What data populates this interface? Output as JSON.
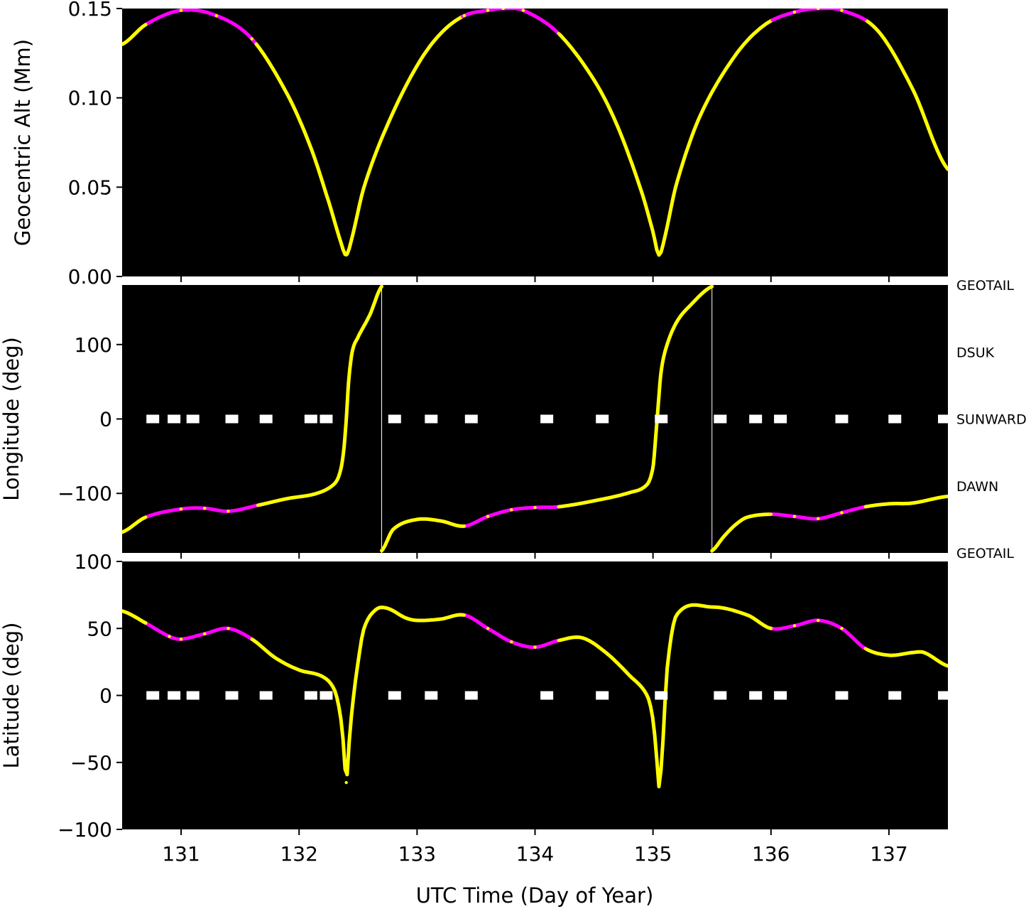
{
  "colors": {
    "background": "#000000",
    "track": "#ffff00",
    "highlight": "#ff00ff",
    "marker": "#ffffff",
    "wrap_line": "#ffffff"
  },
  "chart_data": [
    {
      "type": "line",
      "panel": "altitude",
      "xlabel": "",
      "ylabel": "Geocentric Alt (Mm)",
      "xlim": [
        130.5,
        137.5
      ],
      "ylim": [
        0.0,
        0.15
      ],
      "yticks": [
        0.0,
        0.05,
        0.1,
        0.15
      ],
      "ytick_labels": [
        "0.00",
        "0.05",
        "0.10",
        "0.15"
      ],
      "series": [
        {
          "color": "#ffff00",
          "x": [
            130.5,
            130.7,
            131.0,
            131.3,
            131.6,
            131.9,
            132.1,
            132.25,
            132.35,
            132.4,
            132.45,
            132.55,
            132.75,
            133.0,
            133.2,
            133.4,
            133.6,
            133.73,
            133.9,
            134.2,
            134.5,
            134.7,
            134.9,
            135.0,
            135.05,
            135.1,
            135.2,
            135.4,
            135.7,
            135.95,
            136.2,
            136.4,
            136.6,
            136.9,
            137.2,
            137.5
          ],
          "values": [
            0.13,
            0.141,
            0.149,
            0.146,
            0.133,
            0.102,
            0.072,
            0.042,
            0.02,
            0.012,
            0.022,
            0.05,
            0.085,
            0.118,
            0.136,
            0.146,
            0.149,
            0.15,
            0.149,
            0.136,
            0.11,
            0.084,
            0.048,
            0.025,
            0.012,
            0.022,
            0.052,
            0.09,
            0.124,
            0.141,
            0.148,
            0.15,
            0.149,
            0.138,
            0.105,
            0.06
          ]
        }
      ],
      "highlight_ranges": [
        [
          130.7,
          131.63
        ],
        [
          133.38,
          134.2
        ],
        [
          136.0,
          136.8
        ]
      ]
    },
    {
      "type": "line",
      "panel": "longitude",
      "xlabel": "",
      "ylabel": "Longitude (deg)",
      "xlim": [
        130.5,
        137.5
      ],
      "ylim": [
        -180,
        180
      ],
      "yticks": [
        -100,
        0,
        100
      ],
      "ytick_labels": [
        "−100",
        "0",
        "100"
      ],
      "right_labels": [
        {
          "value": 180,
          "text": "GEOTAIL"
        },
        {
          "value": 90,
          "text": "DSUK"
        },
        {
          "value": 0,
          "text": "SUNWARD"
        },
        {
          "value": -90,
          "text": "DAWN"
        },
        {
          "value": -180,
          "text": "GEOTAIL"
        }
      ],
      "series": [
        {
          "color": "#ffff00",
          "x": [
            130.5,
            130.7,
            131.0,
            131.2,
            131.4,
            131.65,
            131.9,
            132.15,
            132.3,
            132.35,
            132.38,
            132.4,
            132.42,
            132.45,
            132.5,
            132.6,
            132.7
          ],
          "values": [
            -152,
            -132,
            -121,
            -120,
            -124,
            -116,
            -107,
            -100,
            -87,
            -70,
            -40,
            0,
            50,
            90,
            110,
            140,
            178
          ]
        },
        {
          "color": "#ffff00",
          "x": [
            132.7,
            132.8,
            133.0,
            133.2,
            133.4,
            133.6,
            133.8,
            134.0,
            134.2,
            134.5,
            134.8,
            134.95,
            135.0,
            135.02,
            135.04,
            135.07,
            135.12,
            135.2,
            135.3,
            135.5
          ],
          "values": [
            -177,
            -148,
            -135,
            -137,
            -144,
            -131,
            -122,
            -119,
            -118,
            -110,
            -99,
            -88,
            -65,
            -30,
            10,
            65,
            100,
            130,
            150,
            178
          ]
        },
        {
          "color": "#ffff00",
          "x": [
            135.5,
            135.6,
            135.7,
            135.8,
            136.0,
            136.2,
            136.4,
            136.6,
            136.8,
            137.0,
            137.2,
            137.5
          ],
          "values": [
            -177,
            -158,
            -142,
            -132,
            -128,
            -131,
            -134,
            -126,
            -118,
            -114,
            -113,
            -104
          ]
        }
      ],
      "wrap_lines_x": [
        132.7,
        135.5
      ],
      "highlight_ranges": [
        [
          130.7,
          131.65
        ],
        [
          133.4,
          134.2
        ],
        [
          136.0,
          136.8
        ]
      ],
      "marker_y": 0,
      "marker_x": [
        130.76,
        130.94,
        131.1,
        131.43,
        131.72,
        132.1,
        132.23,
        132.81,
        133.12,
        133.46,
        134.1,
        134.57,
        135.07,
        135.57,
        135.87,
        136.08,
        136.6,
        137.05,
        137.47
      ]
    },
    {
      "type": "line",
      "panel": "latitude",
      "xlabel": "UTC Time (Day of Year)",
      "ylabel": "Latitude (deg)",
      "xlim": [
        130.5,
        137.5
      ],
      "ylim": [
        -100,
        100
      ],
      "yticks": [
        -100,
        -50,
        0,
        50,
        100
      ],
      "ytick_labels": [
        "−100",
        "−50",
        "0",
        "50",
        "100"
      ],
      "xticks": [
        131,
        132,
        133,
        134,
        135,
        136,
        137
      ],
      "xtick_labels": [
        "131",
        "132",
        "133",
        "134",
        "135",
        "136",
        "137"
      ],
      "series": [
        {
          "color": "#ffff00",
          "x": [
            130.5,
            130.7,
            130.9,
            131.0,
            131.2,
            131.4,
            131.6,
            131.8,
            132.0,
            132.2,
            132.3,
            132.35,
            132.38,
            132.4,
            132.42,
            132.45,
            132.5,
            132.55,
            132.65,
            132.75,
            132.9,
            133.0,
            133.2,
            133.4,
            133.6,
            133.8,
            134.0,
            134.2,
            134.4,
            134.6,
            134.8,
            134.95,
            135.0,
            135.03,
            135.05,
            135.08,
            135.12,
            135.2,
            135.5,
            135.8,
            136.0,
            136.2,
            136.4,
            136.6,
            136.8,
            137.0,
            137.2,
            137.3,
            137.5
          ],
          "values": [
            63,
            54,
            44,
            42,
            46,
            50,
            42,
            28,
            19,
            14,
            4,
            -15,
            -40,
            -65,
            -40,
            -10,
            25,
            50,
            64,
            65,
            58,
            56,
            57,
            60,
            50,
            40,
            36,
            41,
            43,
            32,
            15,
            0,
            -18,
            -45,
            -68,
            -40,
            20,
            60,
            66,
            60,
            50,
            52,
            56,
            50,
            35,
            30,
            32,
            32,
            22
          ]
        }
      ],
      "highlight_ranges": [
        [
          130.7,
          131.6
        ],
        [
          133.4,
          134.2
        ],
        [
          136.0,
          136.8
        ]
      ],
      "marker_y": 0,
      "marker_x": [
        130.76,
        130.94,
        131.1,
        131.43,
        131.72,
        132.1,
        132.23,
        132.81,
        133.12,
        133.46,
        134.1,
        134.57,
        135.07,
        135.57,
        135.87,
        136.08,
        136.6,
        137.05,
        137.47
      ]
    }
  ]
}
